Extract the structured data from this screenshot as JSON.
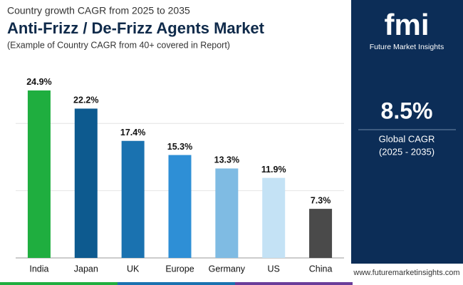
{
  "chart_data": {
    "type": "bar",
    "supertitle": "Country growth CAGR from 2025 to 2035",
    "title": "Anti-Frizz / De-Frizz Agents Market",
    "subtitle": "(Example of Country CAGR from 40+ covered in Report)",
    "categories": [
      "India",
      "Japan",
      "UK",
      "Europe",
      "Germany",
      "US",
      "China"
    ],
    "values": [
      24.9,
      22.2,
      17.4,
      15.3,
      13.3,
      11.9,
      7.3
    ],
    "value_labels": [
      "24.9%",
      "22.2%",
      "17.4%",
      "15.3%",
      "13.3%",
      "11.9%",
      "7.3%"
    ],
    "colors": [
      "#1fae3f",
      "#0d5a8f",
      "#1a72b0",
      "#2e8fd6",
      "#7fbbe3",
      "#c4e2f5",
      "#4a4a4a"
    ],
    "ylim": [
      0,
      25
    ],
    "yticks": [
      0,
      10,
      20
    ],
    "grid": true
  },
  "logo": {
    "mark": "fmi",
    "name": "Future Market Insights"
  },
  "panel": {
    "value": "8.5%",
    "label": "Global CAGR",
    "period": "(2025 - 2035)"
  },
  "footer": {
    "url": "www.futuremarketinsights.com"
  }
}
